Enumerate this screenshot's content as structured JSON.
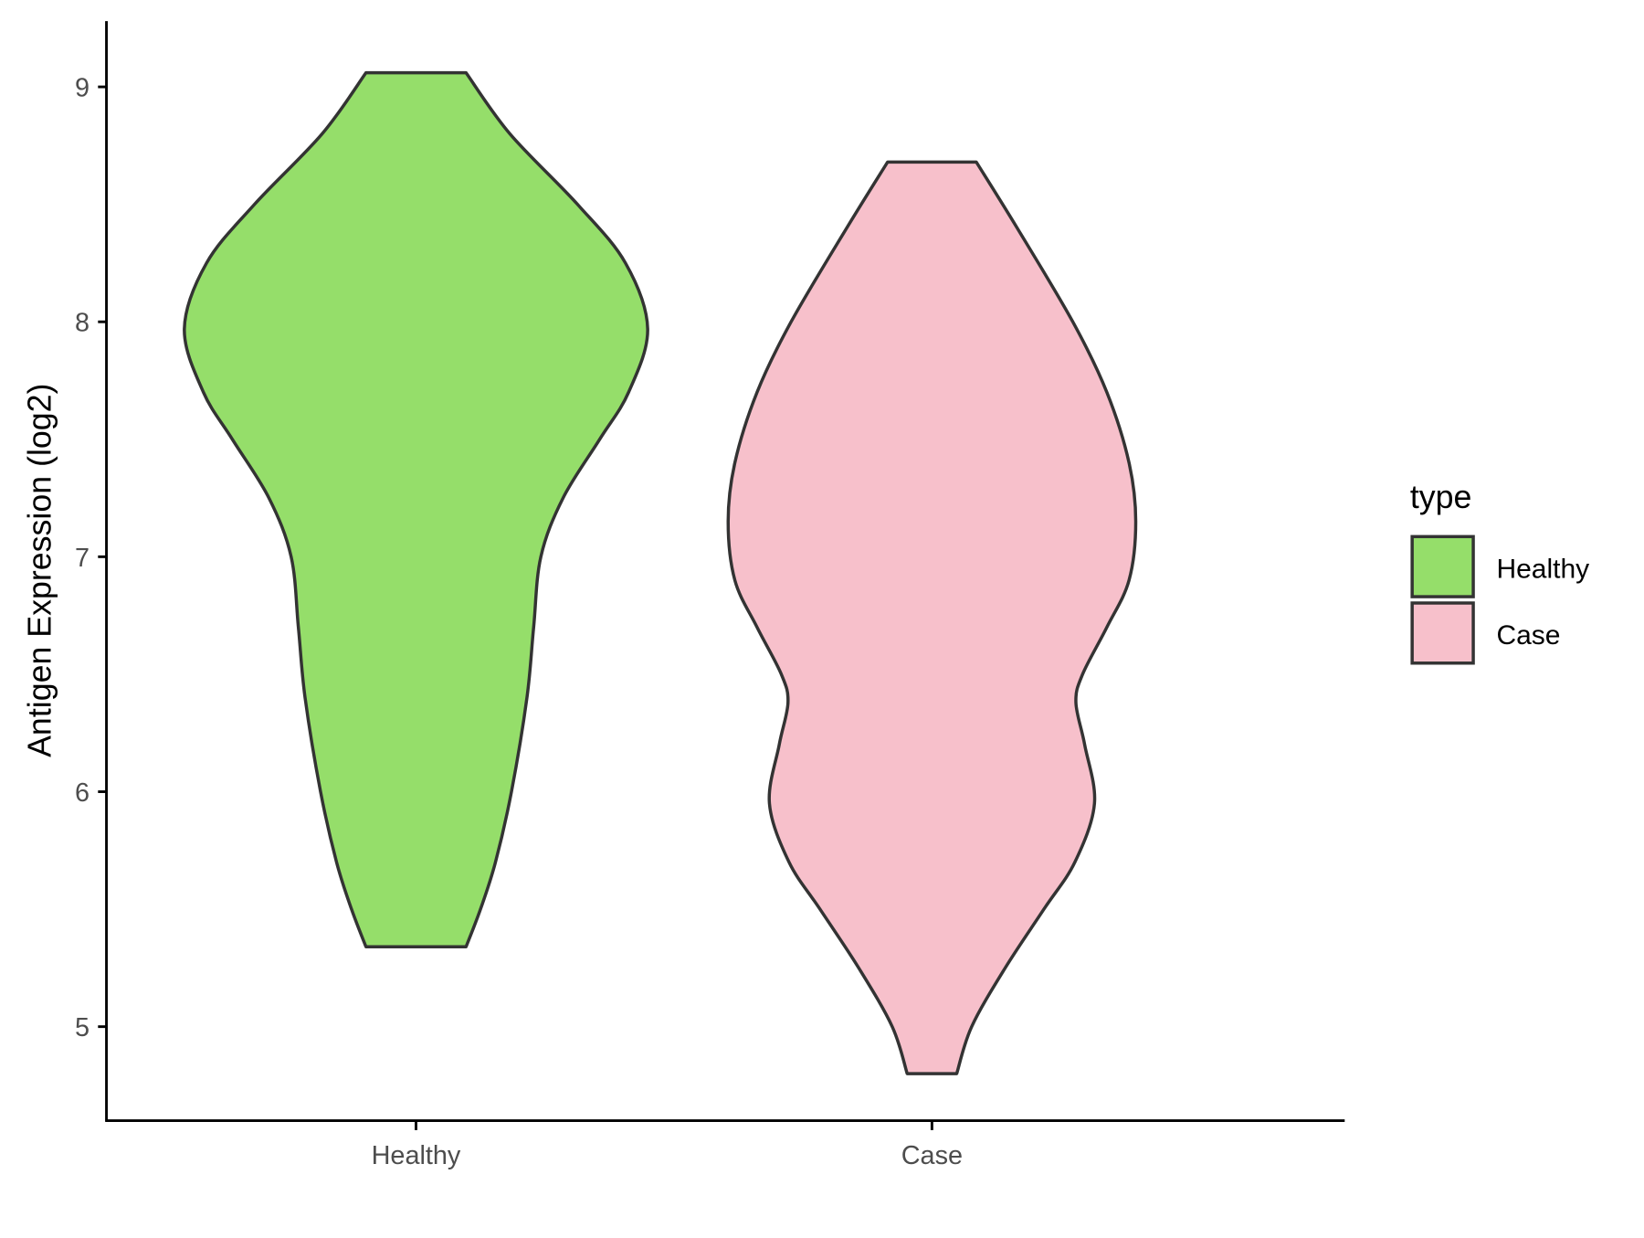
{
  "chart_data": {
    "type": "violin",
    "y_label": "Antigen Expression (log2)",
    "categories": [
      "Healthy",
      "Case"
    ],
    "ylim": [
      4.6,
      9.28
    ],
    "yticks": [
      5,
      6,
      7,
      8,
      9
    ],
    "outline_color": "#333333",
    "legend_title": "type",
    "legend_position": "right",
    "series": [
      {
        "name": "Healthy",
        "color": "#95de6a",
        "y": [
          9.06,
          8.8,
          8.5,
          8.25,
          7.97,
          7.7,
          7.5,
          7.25,
          7.0,
          6.7,
          6.4,
          6.0,
          5.7,
          5.5,
          5.34
        ],
        "half_widths": [
          0.097,
          0.182,
          0.313,
          0.406,
          0.449,
          0.412,
          0.356,
          0.285,
          0.242,
          0.228,
          0.215,
          0.185,
          0.154,
          0.125,
          0.097
        ]
      },
      {
        "name": "Case",
        "color": "#f7c0cb",
        "y": [
          8.68,
          8.4,
          8.0,
          7.7,
          7.4,
          7.15,
          6.9,
          6.7,
          6.5,
          6.38,
          6.2,
          5.95,
          5.7,
          5.5,
          5.25,
          5.0,
          4.8
        ],
        "half_widths": [
          0.086,
          0.165,
          0.273,
          0.339,
          0.382,
          0.395,
          0.382,
          0.339,
          0.292,
          0.279,
          0.296,
          0.315,
          0.277,
          0.217,
          0.142,
          0.077,
          0.048
        ]
      }
    ]
  }
}
